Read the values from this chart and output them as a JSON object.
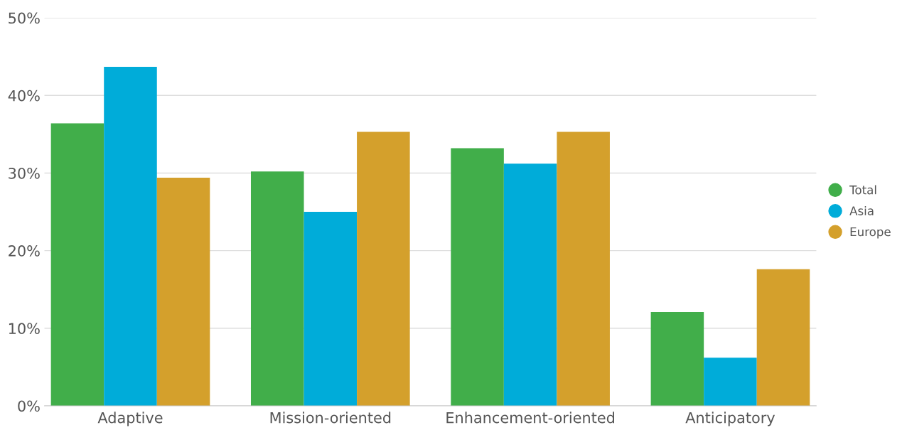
{
  "chart_data": {
    "type": "bar",
    "categories": [
      "Adaptive",
      "Mission-oriented",
      "Enhancement-oriented",
      "Anticipatory"
    ],
    "series": [
      {
        "name": "Total",
        "color": "#41ae4a",
        "values": [
          36.4,
          30.2,
          33.2,
          12.1
        ]
      },
      {
        "name": "Asia",
        "color": "#00acd9",
        "values": [
          43.7,
          25.0,
          31.2,
          6.2
        ]
      },
      {
        "name": "Europe",
        "color": "#d4a02c",
        "values": [
          29.4,
          35.3,
          35.3,
          17.6
        ]
      }
    ],
    "ylim": [
      0,
      50
    ],
    "yticks": [
      {
        "value": 0,
        "label": "0%"
      },
      {
        "value": 10,
        "label": "10%"
      },
      {
        "value": 20,
        "label": "20%"
      },
      {
        "value": 30,
        "label": "30%"
      },
      {
        "value": 40,
        "label": "40%"
      },
      {
        "value": 50,
        "label": "50%"
      }
    ],
    "grid": "y",
    "legend": "right"
  }
}
